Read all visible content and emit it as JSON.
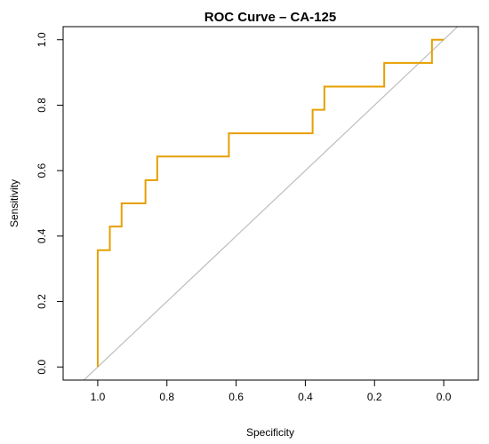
{
  "chart_data": {
    "type": "line",
    "title": "ROC Curve – CA-125",
    "xlabel": "Specificity",
    "ylabel": "Sensitivity",
    "x_axis_reversed": true,
    "xlim": [
      1.1,
      -0.1
    ],
    "ylim": [
      -0.04,
      1.04
    ],
    "x_ticks": [
      1.0,
      0.8,
      0.6,
      0.4,
      0.2,
      0.0
    ],
    "x_tick_labels": [
      "1.0",
      "0.8",
      "0.6",
      "0.4",
      "0.2",
      "0.0"
    ],
    "y_ticks": [
      0.0,
      0.2,
      0.4,
      0.6,
      0.8,
      1.0
    ],
    "y_tick_labels": [
      "0.0",
      "0.2",
      "0.4",
      "0.6",
      "0.8",
      "1.0"
    ],
    "grid": false,
    "series": [
      {
        "color": "#E69F00",
        "points": [
          {
            "specificity": 1.0,
            "sensitivity": 0.0
          },
          {
            "specificity": 1.0,
            "sensitivity": 0.357
          },
          {
            "specificity": 0.965,
            "sensitivity": 0.357
          },
          {
            "specificity": 0.965,
            "sensitivity": 0.429
          },
          {
            "specificity": 0.931,
            "sensitivity": 0.429
          },
          {
            "specificity": 0.931,
            "sensitivity": 0.5
          },
          {
            "specificity": 0.862,
            "sensitivity": 0.5
          },
          {
            "specificity": 0.862,
            "sensitivity": 0.571
          },
          {
            "specificity": 0.828,
            "sensitivity": 0.571
          },
          {
            "specificity": 0.828,
            "sensitivity": 0.643
          },
          {
            "specificity": 0.621,
            "sensitivity": 0.643
          },
          {
            "specificity": 0.621,
            "sensitivity": 0.714
          },
          {
            "specificity": 0.379,
            "sensitivity": 0.714
          },
          {
            "specificity": 0.379,
            "sensitivity": 0.786
          },
          {
            "specificity": 0.345,
            "sensitivity": 0.786
          },
          {
            "specificity": 0.345,
            "sensitivity": 0.857
          },
          {
            "specificity": 0.172,
            "sensitivity": 0.857
          },
          {
            "specificity": 0.172,
            "sensitivity": 0.929
          },
          {
            "specificity": 0.034,
            "sensitivity": 0.929
          },
          {
            "specificity": 0.034,
            "sensitivity": 1.0
          },
          {
            "specificity": 0.0,
            "sensitivity": 1.0
          }
        ]
      }
    ],
    "reference_line": {
      "color": "#BEBEBE",
      "from": {
        "specificity": 1.1,
        "sensitivity": -0.1
      },
      "to": {
        "specificity": -0.1,
        "sensitivity": 1.1
      }
    }
  }
}
